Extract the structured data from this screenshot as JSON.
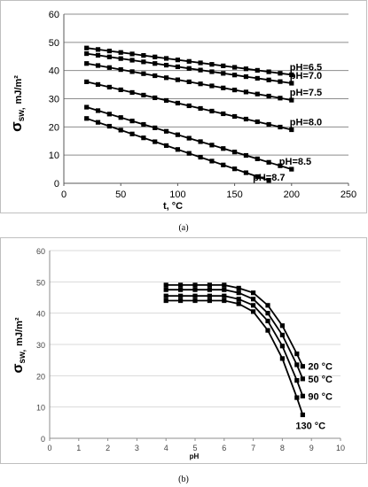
{
  "chart_data": [
    {
      "type": "line",
      "caption": "(a)",
      "xlabel": "t, °C",
      "ylabel_main": "σ",
      "ylabel_sub": "sw,",
      "ylabel_unit": "mJ/m²",
      "xlim": [
        0,
        250
      ],
      "ylim": [
        0,
        60
      ],
      "xticks": [
        0,
        50,
        100,
        150,
        200,
        250
      ],
      "yticks": [
        0,
        10,
        20,
        30,
        40,
        50,
        60
      ],
      "grid": "horizontal",
      "series": [
        {
          "name": "pH=6.5",
          "x": [
            20,
            200
          ],
          "y": [
            48,
            38.5
          ]
        },
        {
          "name": "pH=7.0",
          "x": [
            20,
            200
          ],
          "y": [
            46,
            35.5
          ]
        },
        {
          "name": "pH=7.5",
          "x": [
            20,
            200
          ],
          "y": [
            42.5,
            29.5
          ]
        },
        {
          "name": "pH=8.0",
          "x": [
            20,
            200
          ],
          "y": [
            36,
            19
          ]
        },
        {
          "name": "pH=8.5",
          "x": [
            20,
            200
          ],
          "y": [
            27,
            5
          ]
        },
        {
          "name": "pH=8.7",
          "x": [
            20,
            180
          ],
          "y": [
            23,
            1
          ]
        }
      ]
    },
    {
      "type": "line",
      "caption": "(b)",
      "xlabel": "pH",
      "ylabel_main": "σ",
      "ylabel_sub": "sw,",
      "ylabel_unit": "mJ/m²",
      "xlim": [
        0,
        10
      ],
      "ylim": [
        0,
        60
      ],
      "xticks": [
        0,
        1,
        2,
        3,
        4,
        5,
        6,
        7,
        8,
        9,
        10
      ],
      "yticks": [
        0,
        10,
        20,
        30,
        40,
        50,
        60
      ],
      "grid": "horizontal",
      "x": [
        4,
        4.5,
        5,
        5.5,
        6,
        6.5,
        7,
        7.5,
        8,
        8.5,
        8.7
      ],
      "series": [
        {
          "name": "20 °C",
          "y": [
            49,
            49,
            49,
            49,
            49,
            48,
            46.5,
            42.5,
            36,
            27,
            23
          ]
        },
        {
          "name": "50 °C",
          "y": [
            47.5,
            47.5,
            47.5,
            47.5,
            47.5,
            46.5,
            44.5,
            40,
            33,
            23.5,
            19
          ]
        },
        {
          "name": "90 °C",
          "y": [
            45.5,
            45.5,
            45.5,
            45.5,
            45.5,
            44.5,
            42.5,
            37.5,
            29.5,
            18.5,
            13.5
          ]
        },
        {
          "name": "130 °C",
          "y": [
            44,
            44,
            44,
            44,
            44,
            43,
            40.5,
            34.5,
            25.5,
            13,
            7.5
          ]
        }
      ]
    }
  ]
}
